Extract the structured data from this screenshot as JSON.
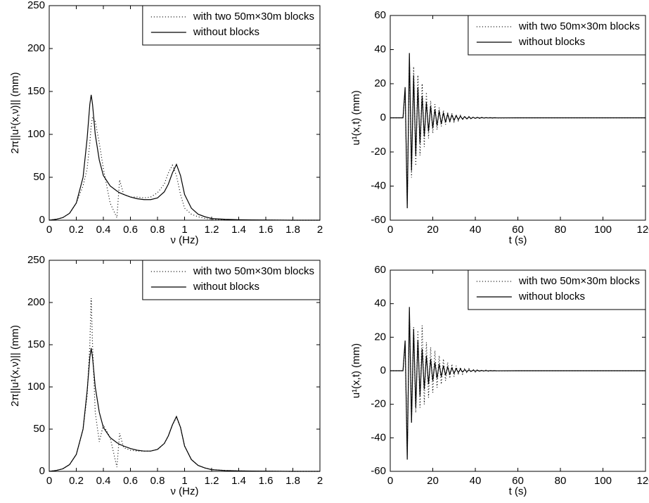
{
  "chart_data": [
    {
      "type": "line",
      "xlabel": "ν (Hz)",
      "ylabel": "2π||u¹(x,ν)|| (mm)",
      "x": [
        0,
        0.05,
        0.1,
        0.15,
        0.2,
        0.25,
        0.28,
        0.3,
        0.31,
        0.32,
        0.34,
        0.37,
        0.4,
        0.45,
        0.5,
        0.52,
        0.55,
        0.6,
        0.65,
        0.7,
        0.75,
        0.8,
        0.85,
        0.88,
        0.91,
        0.94,
        0.97,
        1.0,
        1.05,
        1.1,
        1.15,
        1.2,
        1.3,
        1.4,
        1.5,
        1.6,
        1.7,
        1.8,
        2.0
      ],
      "series": [
        {
          "name": "with two 50m×30m blocks",
          "color": "#000000",
          "style": "dotted",
          "values": [
            0,
            1,
            3,
            8,
            20,
            40,
            60,
            90,
            110,
            120,
            115,
            90,
            60,
            20,
            3,
            47,
            30,
            27,
            27,
            26,
            27,
            32,
            42,
            55,
            64,
            52,
            30,
            14,
            7,
            4,
            2,
            1,
            0.5,
            0.3,
            0.2,
            0.1,
            0.1,
            0,
            0
          ]
        },
        {
          "name": "without blocks",
          "color": "#000000",
          "style": "solid",
          "values": [
            0,
            1,
            3,
            8,
            20,
            50,
            95,
            135,
            146,
            135,
            100,
            70,
            52,
            40,
            34,
            32,
            30,
            27,
            25,
            24,
            24,
            26,
            33,
            42,
            55,
            65,
            52,
            30,
            14,
            7,
            4,
            2,
            1,
            0.5,
            0.3,
            0.2,
            0.1,
            0,
            0
          ]
        }
      ],
      "xlim": [
        0,
        2
      ],
      "xticks": [
        0,
        0.2,
        0.4,
        0.6,
        0.8,
        1,
        1.2,
        1.4,
        1.6,
        1.8,
        2
      ],
      "ylim": [
        0,
        250
      ],
      "yticks": [
        0,
        50,
        100,
        150,
        200,
        250
      ],
      "legend": "upper right"
    },
    {
      "type": "line",
      "xlabel": "t (s)",
      "ylabel": "u¹(x,t) (mm)",
      "x": [
        0,
        5,
        6,
        7,
        8,
        9,
        10,
        11,
        12,
        13,
        14,
        15,
        16,
        17,
        18,
        19,
        20,
        21,
        22,
        23,
        24,
        25,
        26,
        27,
        28,
        29,
        30,
        31,
        32,
        33,
        34,
        35,
        36,
        37,
        38,
        39,
        40,
        41,
        42,
        43,
        44,
        45,
        46,
        47,
        48,
        49,
        50,
        60,
        120
      ],
      "series": [
        {
          "name": "with two 50m×30m blocks",
          "color": "#000000",
          "style": "dotted",
          "values": [
            0,
            0,
            0,
            15,
            -50,
            35,
            -35,
            30,
            -28,
            25,
            -22,
            20,
            -17,
            15,
            -12,
            10,
            -9,
            8,
            -7,
            6,
            -5,
            4.5,
            -4,
            3.5,
            -3,
            2.6,
            -2.2,
            2,
            -1.7,
            1.4,
            -1.2,
            1,
            -0.9,
            0.8,
            -0.7,
            0.6,
            -0.5,
            0.4,
            -0.35,
            0.3,
            -0.25,
            0.2,
            -0.15,
            0.12,
            -0.1,
            0.08,
            -0.06,
            0,
            0
          ]
        },
        {
          "name": "without blocks",
          "color": "#000000",
          "style": "solid",
          "values": [
            0,
            0,
            0,
            18,
            -53,
            38,
            -31,
            25,
            -22,
            18,
            -15,
            13,
            -11,
            9,
            -8,
            7,
            -6,
            5,
            -4.5,
            4,
            -3.5,
            3,
            -2.6,
            2.2,
            -2,
            1.7,
            -1.5,
            1.3,
            -1.1,
            1,
            -0.8,
            0.7,
            -0.6,
            0.5,
            -0.4,
            0.35,
            -0.3,
            0.25,
            -0.2,
            0.15,
            -0.12,
            0.1,
            -0.08,
            0.06,
            -0.05,
            0.04,
            -0.03,
            0,
            0
          ]
        }
      ],
      "xlim": [
        0,
        120
      ],
      "xticks": [
        0,
        20,
        40,
        60,
        80,
        100,
        120
      ],
      "ylim": [
        -60,
        60
      ],
      "yticks": [
        -60,
        -40,
        -20,
        0,
        20,
        40,
        60
      ],
      "legend": "upper right"
    },
    {
      "type": "line",
      "xlabel": "ν (Hz)",
      "ylabel": "2π||u¹(x,ν)|| (mm)",
      "x": [
        0,
        0.05,
        0.1,
        0.15,
        0.2,
        0.25,
        0.28,
        0.3,
        0.31,
        0.32,
        0.34,
        0.37,
        0.4,
        0.45,
        0.5,
        0.52,
        0.55,
        0.6,
        0.65,
        0.7,
        0.75,
        0.8,
        0.85,
        0.88,
        0.91,
        0.94,
        0.97,
        1.0,
        1.05,
        1.1,
        1.15,
        1.2,
        1.3,
        1.4,
        1.5,
        1.6,
        1.7,
        1.8,
        2.0
      ],
      "series": [
        {
          "name": "with two 50m×30m blocks",
          "color": "#000000",
          "style": "dotted",
          "values": [
            0,
            1,
            3,
            8,
            20,
            50,
            90,
            150,
            205,
            150,
            70,
            35,
            55,
            40,
            5,
            45,
            28,
            25,
            24,
            24,
            24,
            26,
            33,
            42,
            55,
            64,
            52,
            30,
            14,
            7,
            4,
            2,
            1,
            0.5,
            0.3,
            0.2,
            0.1,
            0,
            0
          ]
        },
        {
          "name": "without blocks",
          "color": "#000000",
          "style": "solid",
          "values": [
            0,
            1,
            3,
            8,
            20,
            50,
            95,
            135,
            146,
            135,
            100,
            70,
            52,
            40,
            34,
            32,
            30,
            27,
            25,
            24,
            24,
            26,
            33,
            42,
            55,
            65,
            52,
            30,
            14,
            7,
            4,
            2,
            1,
            0.5,
            0.3,
            0.2,
            0.1,
            0,
            0
          ]
        }
      ],
      "xlim": [
        0,
        2
      ],
      "xticks": [
        0,
        0.2,
        0.4,
        0.6,
        0.8,
        1,
        1.2,
        1.4,
        1.6,
        1.8,
        2
      ],
      "ylim": [
        0,
        250
      ],
      "yticks": [
        0,
        50,
        100,
        150,
        200,
        250
      ],
      "legend": "upper right"
    },
    {
      "type": "line",
      "xlabel": "t (s)",
      "ylabel": "u¹(x,t) (mm)",
      "x": [
        0,
        5,
        6,
        7,
        8,
        9,
        10,
        11,
        12,
        13,
        14,
        15,
        16,
        17,
        18,
        19,
        20,
        21,
        22,
        23,
        24,
        25,
        26,
        27,
        28,
        29,
        30,
        31,
        32,
        33,
        34,
        35,
        36,
        37,
        38,
        39,
        40,
        41,
        42,
        43,
        44,
        45,
        46,
        47,
        48,
        49,
        50,
        60,
        120
      ],
      "series": [
        {
          "name": "with two 50m×30m blocks",
          "color": "#000000",
          "style": "dotted",
          "values": [
            0,
            0,
            0,
            15,
            -50,
            35,
            -30,
            26,
            -25,
            24,
            -22,
            27,
            -20,
            17,
            -16,
            14,
            -13,
            12,
            -10,
            9,
            -8,
            7,
            -6,
            5,
            -4.5,
            4,
            -3.5,
            3,
            -2.6,
            2.2,
            -1.9,
            1.6,
            -1.4,
            1.2,
            -1,
            0.9,
            -0.8,
            0.7,
            -0.6,
            0.5,
            -0.4,
            0.35,
            -0.3,
            0.25,
            -0.2,
            0.15,
            -0.1,
            0,
            0
          ]
        },
        {
          "name": "without blocks",
          "color": "#000000",
          "style": "solid",
          "values": [
            0,
            0,
            0,
            18,
            -53,
            38,
            -31,
            25,
            -22,
            18,
            -15,
            13,
            -11,
            9,
            -8,
            7,
            -6,
            5,
            -4.5,
            4,
            -3.5,
            3,
            -2.6,
            2.2,
            -2,
            1.7,
            -1.5,
            1.3,
            -1.1,
            1,
            -0.8,
            0.7,
            -0.6,
            0.5,
            -0.4,
            0.35,
            -0.3,
            0.25,
            -0.2,
            0.15,
            -0.12,
            0.1,
            -0.08,
            0.06,
            -0.05,
            0.04,
            -0.03,
            0,
            0
          ]
        }
      ],
      "xlim": [
        0,
        120
      ],
      "xticks": [
        0,
        20,
        40,
        60,
        80,
        100,
        120
      ],
      "ylim": [
        -60,
        60
      ],
      "yticks": [
        -60,
        -40,
        -20,
        0,
        20,
        40,
        60
      ],
      "legend": "upper right"
    }
  ]
}
